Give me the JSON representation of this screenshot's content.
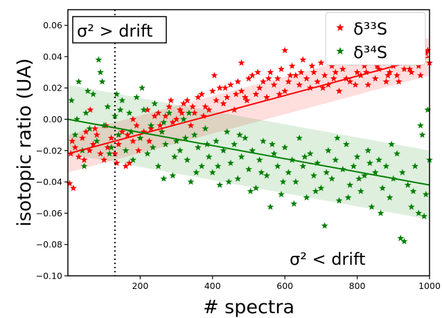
{
  "chart_data": {
    "type": "scatter",
    "xlabel": "# spectra",
    "ylabel": "isotopic ratio (UA)",
    "xlim": [
      0,
      1000
    ],
    "ylim": [
      -0.1,
      0.07
    ],
    "x_ticks": [
      200,
      400,
      600,
      800,
      1000
    ],
    "y_ticks": [
      -0.1,
      -0.08,
      -0.06,
      -0.04,
      -0.02,
      0.0,
      0.02,
      0.04,
      0.06
    ],
    "grid": false,
    "legend": "top-right",
    "vline_x": 130,
    "annotations": [
      {
        "text": "σ² > drift",
        "x": 10,
        "y": 0.063,
        "boxed": true
      },
      {
        "text": "σ² < drift",
        "x": 620,
        "y": -0.088,
        "boxed": false
      }
    ],
    "series": [
      {
        "name": "δ³³S",
        "color": "#ff0000",
        "marker": "star",
        "fit": {
          "intercept": -0.022,
          "slope": 6.2e-05
        },
        "band": {
          "lower_offset": -0.012,
          "upper_offset": 0.012
        },
        "points": [
          [
            5,
            -0.041
          ],
          [
            15,
            -0.044
          ],
          [
            8,
            -0.022
          ],
          [
            20,
            -0.018
          ],
          [
            30,
            -0.024
          ],
          [
            40,
            -0.012
          ],
          [
            50,
            -0.008
          ],
          [
            60,
            -0.02
          ],
          [
            70,
            -0.016
          ],
          [
            80,
            -0.01
          ],
          [
            90,
            -0.022
          ],
          [
            100,
            -0.026
          ],
          [
            110,
            -0.018
          ],
          [
            120,
            -0.012
          ],
          [
            130,
            -0.022
          ],
          [
            140,
            -0.016
          ],
          [
            150,
            -0.008
          ],
          [
            160,
            -0.03
          ],
          [
            170,
            -0.028
          ],
          [
            180,
            -0.014
          ],
          [
            190,
            -0.004
          ],
          [
            200,
            -0.012
          ],
          [
            210,
            -0.008
          ],
          [
            220,
            0.006
          ],
          [
            230,
            -0.006
          ],
          [
            240,
            0.002
          ],
          [
            250,
            0.004
          ],
          [
            260,
            -0.008
          ],
          [
            270,
            0.002
          ],
          [
            280,
            0.008
          ],
          [
            290,
            -0.002
          ],
          [
            300,
            0.0
          ],
          [
            310,
            0.006
          ],
          [
            320,
            0.01
          ],
          [
            330,
            0.012
          ],
          [
            340,
            -0.004
          ],
          [
            350,
            0.004
          ],
          [
            360,
            0.014
          ],
          [
            370,
            0.016
          ],
          [
            380,
            0.008
          ],
          [
            390,
            0.006
          ],
          [
            400,
            0.018
          ],
          [
            410,
            0.012
          ],
          [
            420,
            0.02
          ],
          [
            430,
            0.01
          ],
          [
            440,
            0.014
          ],
          [
            450,
            0.022
          ],
          [
            460,
            0.006
          ],
          [
            470,
            0.024
          ],
          [
            480,
            0.018
          ],
          [
            490,
            0.014
          ],
          [
            500,
            0.026
          ],
          [
            510,
            0.028
          ],
          [
            520,
            0.016
          ],
          [
            530,
            0.02
          ],
          [
            540,
            0.024
          ],
          [
            550,
            0.014
          ],
          [
            560,
            0.03
          ],
          [
            570,
            0.022
          ],
          [
            580,
            0.026
          ],
          [
            590,
            0.032
          ],
          [
            600,
            0.018
          ],
          [
            610,
            0.024
          ],
          [
            620,
            0.034
          ],
          [
            630,
            0.028
          ],
          [
            640,
            0.022
          ],
          [
            650,
            0.038
          ],
          [
            660,
            0.026
          ],
          [
            670,
            0.02
          ],
          [
            680,
            0.03
          ],
          [
            690,
            0.024
          ],
          [
            700,
            0.036
          ],
          [
            710,
            0.028
          ],
          [
            720,
            0.022
          ],
          [
            730,
            0.034
          ],
          [
            740,
            0.03
          ],
          [
            750,
            0.018
          ],
          [
            760,
            0.032
          ],
          [
            770,
            0.026
          ],
          [
            780,
            0.024
          ],
          [
            790,
            0.036
          ],
          [
            800,
            0.03
          ],
          [
            810,
            0.028
          ],
          [
            820,
            0.034
          ],
          [
            830,
            0.022
          ],
          [
            840,
            0.038
          ],
          [
            850,
            0.026
          ],
          [
            860,
            0.032
          ],
          [
            870,
            0.036
          ],
          [
            880,
            0.024
          ],
          [
            890,
            0.03
          ],
          [
            900,
            0.034
          ],
          [
            910,
            0.028
          ],
          [
            920,
            0.038
          ],
          [
            930,
            0.032
          ],
          [
            940,
            0.036
          ],
          [
            950,
            0.03
          ],
          [
            960,
            0.04
          ],
          [
            970,
            0.034
          ],
          [
            980,
            0.038
          ],
          [
            990,
            0.042
          ],
          [
            1000,
            0.036
          ],
          [
            12,
            -0.014
          ],
          [
            45,
            -0.026
          ],
          [
            75,
            -0.006
          ],
          [
            105,
            -0.004
          ],
          [
            135,
            -0.028
          ],
          [
            165,
            -0.01
          ],
          [
            195,
            -0.02
          ],
          [
            225,
            -0.014
          ],
          [
            255,
            -0.004
          ],
          [
            285,
            0.012
          ],
          [
            315,
            0.004
          ],
          [
            345,
            0.008
          ],
          [
            375,
            0.002
          ],
          [
            405,
            0.028
          ],
          [
            435,
            0.02
          ],
          [
            465,
            0.016
          ],
          [
            495,
            0.012
          ],
          [
            525,
            0.03
          ],
          [
            555,
            0.026
          ],
          [
            585,
            0.016
          ],
          [
            615,
            0.028
          ],
          [
            645,
            0.03
          ],
          [
            675,
            0.034
          ],
          [
            705,
            0.02
          ],
          [
            735,
            0.026
          ],
          [
            765,
            0.038
          ],
          [
            795,
            0.022
          ],
          [
            825,
            0.03
          ],
          [
            855,
            0.034
          ],
          [
            885,
            0.028
          ],
          [
            915,
            0.024
          ],
          [
            945,
            0.032
          ],
          [
            975,
            0.028
          ],
          [
            995,
            0.044
          ],
          [
            600,
            0.044
          ],
          [
            480,
            0.036
          ],
          [
            62,
            0.006
          ],
          [
            180,
            0.0
          ]
        ]
      },
      {
        "name": "δ³⁴S",
        "color": "#008000",
        "marker": "star",
        "fit": {
          "intercept": 0.0,
          "slope": -4.2e-05
        },
        "band": {
          "lower_offset": -0.022,
          "upper_offset": 0.022
        },
        "points": [
          [
            10,
            0.012
          ],
          [
            20,
            -0.01
          ],
          [
            30,
            0.024
          ],
          [
            40,
            -0.02
          ],
          [
            50,
            0.004
          ],
          [
            60,
            -0.006
          ],
          [
            70,
            0.016
          ],
          [
            80,
            -0.014
          ],
          [
            85,
            0.038
          ],
          [
            90,
            0.03
          ],
          [
            100,
            -0.004
          ],
          [
            110,
            0.008
          ],
          [
            120,
            -0.018
          ],
          [
            130,
            0.002
          ],
          [
            140,
            -0.01
          ],
          [
            150,
            0.012
          ],
          [
            160,
            -0.02
          ],
          [
            170,
            0.004
          ],
          [
            180,
            -0.026
          ],
          [
            190,
            0.014
          ],
          [
            200,
            -0.012
          ],
          [
            210,
            0.006
          ],
          [
            220,
            -0.022
          ],
          [
            230,
            -0.004
          ],
          [
            240,
            0.01
          ],
          [
            250,
            -0.03
          ],
          [
            260,
            -0.008
          ],
          [
            270,
            -0.016
          ],
          [
            280,
            0.004
          ],
          [
            290,
            -0.036
          ],
          [
            300,
            -0.014
          ],
          [
            310,
            -0.02
          ],
          [
            320,
            0.0
          ],
          [
            330,
            -0.026
          ],
          [
            340,
            -0.04
          ],
          [
            350,
            -0.01
          ],
          [
            360,
            -0.018
          ],
          [
            370,
            -0.03
          ],
          [
            380,
            -0.006
          ],
          [
            390,
            -0.024
          ],
          [
            400,
            -0.034
          ],
          [
            410,
            -0.014
          ],
          [
            420,
            -0.042
          ],
          [
            430,
            -0.02
          ],
          [
            440,
            -0.008
          ],
          [
            450,
            -0.028
          ],
          [
            460,
            -0.016
          ],
          [
            470,
            -0.038
          ],
          [
            480,
            -0.024
          ],
          [
            490,
            -0.012
          ],
          [
            500,
            -0.032
          ],
          [
            510,
            -0.02
          ],
          [
            520,
            -0.044
          ],
          [
            530,
            -0.026
          ],
          [
            540,
            -0.014
          ],
          [
            550,
            -0.036
          ],
          [
            560,
            -0.056
          ],
          [
            570,
            -0.022
          ],
          [
            580,
            -0.03
          ],
          [
            590,
            -0.048
          ],
          [
            600,
            -0.018
          ],
          [
            610,
            -0.034
          ],
          [
            620,
            -0.026
          ],
          [
            630,
            -0.04
          ],
          [
            640,
            -0.012
          ],
          [
            650,
            -0.03
          ],
          [
            660,
            -0.05
          ],
          [
            670,
            -0.022
          ],
          [
            680,
            -0.036
          ],
          [
            690,
            -0.028
          ],
          [
            700,
            -0.044
          ],
          [
            710,
            -0.068
          ],
          [
            720,
            -0.02
          ],
          [
            730,
            -0.038
          ],
          [
            740,
            -0.026
          ],
          [
            750,
            -0.052
          ],
          [
            760,
            -0.032
          ],
          [
            770,
            -0.016
          ],
          [
            780,
            -0.042
          ],
          [
            790,
            -0.03
          ],
          [
            800,
            -0.024
          ],
          [
            810,
            -0.046
          ],
          [
            820,
            -0.036
          ],
          [
            830,
            -0.02
          ],
          [
            840,
            -0.056
          ],
          [
            850,
            -0.034
          ],
          [
            860,
            -0.026
          ],
          [
            870,
            -0.044
          ],
          [
            880,
            -0.03
          ],
          [
            890,
            -0.05
          ],
          [
            900,
            -0.038
          ],
          [
            910,
            -0.022
          ],
          [
            920,
            -0.076
          ],
          [
            930,
            -0.078
          ],
          [
            940,
            -0.042
          ],
          [
            950,
            -0.056
          ],
          [
            960,
            -0.03
          ],
          [
            970,
            -0.06
          ],
          [
            980,
            -0.01
          ],
          [
            990,
            -0.048
          ],
          [
            1000,
            -0.026
          ],
          [
            995,
            0.006
          ],
          [
            975,
            -0.004
          ],
          [
            25,
            0.0
          ],
          [
            55,
            0.018
          ],
          [
            95,
            0.024
          ],
          [
            115,
            -0.022
          ],
          [
            145,
            0.006
          ],
          [
            175,
            -0.008
          ],
          [
            205,
            0.02
          ],
          [
            235,
            -0.018
          ],
          [
            265,
            -0.002
          ],
          [
            295,
            -0.024
          ],
          [
            325,
            -0.012
          ],
          [
            355,
            -0.034
          ],
          [
            385,
            -0.016
          ],
          [
            415,
            -0.03
          ],
          [
            445,
            -0.04
          ],
          [
            475,
            -0.01
          ],
          [
            505,
            -0.046
          ],
          [
            535,
            -0.034
          ],
          [
            565,
            -0.016
          ],
          [
            595,
            -0.04
          ],
          [
            625,
            -0.054
          ],
          [
            655,
            -0.024
          ],
          [
            685,
            -0.046
          ],
          [
            715,
            -0.034
          ],
          [
            745,
            -0.012
          ],
          [
            775,
            -0.05
          ],
          [
            805,
            -0.038
          ],
          [
            835,
            -0.028
          ],
          [
            865,
            -0.06
          ],
          [
            895,
            -0.016
          ],
          [
            925,
            -0.034
          ],
          [
            955,
            -0.046
          ],
          [
            985,
            -0.062
          ],
          [
            45,
            -0.03
          ],
          [
            135,
            0.016
          ],
          [
            265,
            -0.038
          ],
          [
            335,
            0.004
          ]
        ]
      }
    ]
  }
}
